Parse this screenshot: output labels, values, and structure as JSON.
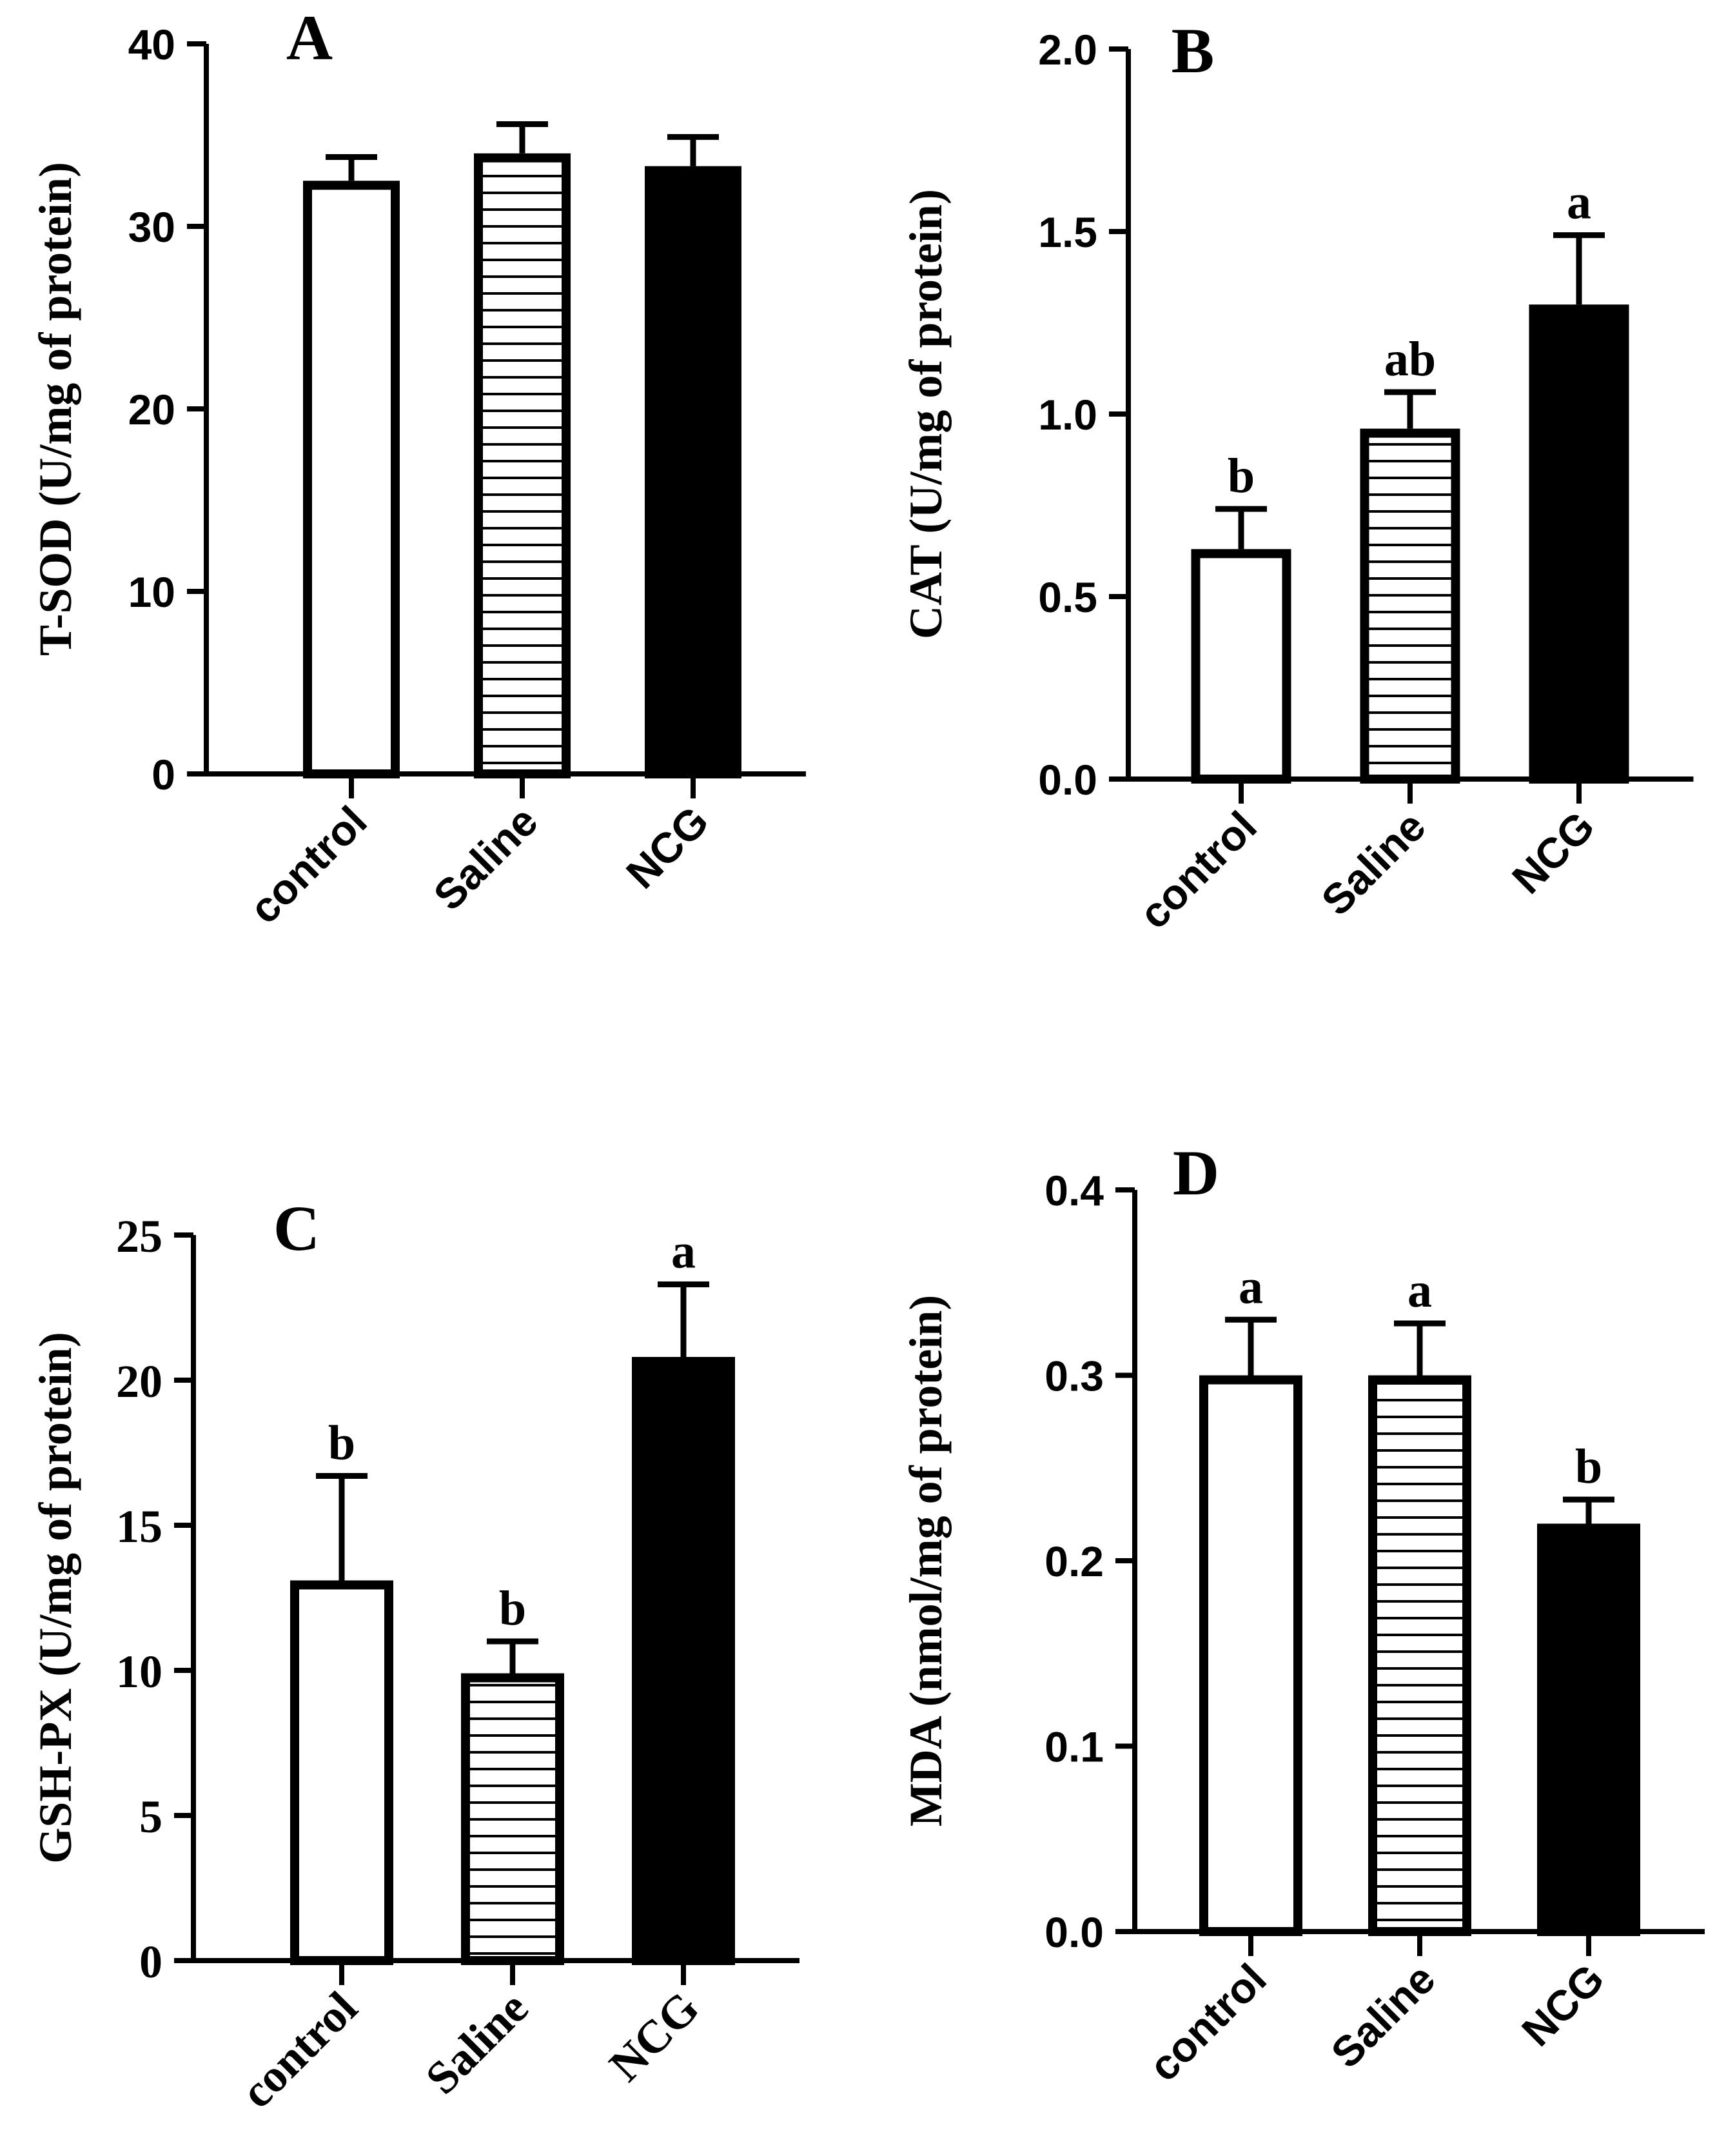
{
  "chart_data": [
    {
      "type": "bar",
      "panel_label": "A",
      "ylabel": "T-SOD (U/mg of protein)",
      "categories": [
        "control",
        "Saline",
        "NCG"
      ],
      "values": [
        32.5,
        34.0,
        33.3
      ],
      "errors": [
        1.3,
        1.6,
        1.6
      ],
      "significance": [
        "",
        "",
        ""
      ],
      "ylim": [
        0,
        40
      ],
      "yticks": [
        0,
        10,
        20,
        30,
        40
      ],
      "ytick_labels": [
        "0",
        "10",
        "20",
        "30",
        "40"
      ],
      "tick_font": "sans",
      "xlabel_font": "sans",
      "fills": [
        "white",
        "hatch",
        "black"
      ]
    },
    {
      "type": "bar",
      "panel_label": "B",
      "ylabel": "CAT (U/mg of protein)",
      "categories": [
        "control",
        "Saline",
        "NCG"
      ],
      "values": [
        0.63,
        0.96,
        1.3
      ],
      "errors": [
        0.11,
        0.1,
        0.19
      ],
      "significance": [
        "b",
        "ab",
        "a"
      ],
      "ylim": [
        0,
        2.0
      ],
      "yticks": [
        0,
        0.5,
        1.0,
        1.5,
        2.0
      ],
      "ytick_labels": [
        "0.0",
        "0.5",
        "1.0",
        "1.5",
        "2.0"
      ],
      "tick_font": "sans",
      "xlabel_font": "sans",
      "fills": [
        "white",
        "hatch",
        "black"
      ]
    },
    {
      "type": "bar",
      "panel_label": "C",
      "ylabel": "GSH-PX (U/mg of protein)",
      "categories": [
        "control",
        "Saline",
        "NCG"
      ],
      "values": [
        13.1,
        9.9,
        20.8
      ],
      "errors": [
        3.6,
        1.1,
        2.5
      ],
      "significance": [
        "b",
        "b",
        "a"
      ],
      "ylim": [
        0,
        25
      ],
      "yticks": [
        0,
        5,
        10,
        15,
        20,
        25
      ],
      "ytick_labels": [
        "0",
        "5",
        "10",
        "15",
        "20",
        "25"
      ],
      "tick_font": "serif",
      "xlabel_font": "serif",
      "fills": [
        "white",
        "hatch",
        "black"
      ]
    },
    {
      "type": "bar",
      "panel_label": "D",
      "ylabel": "MDA (nmol/mg of protein)",
      "categories": [
        "control",
        "Saline",
        "NCG"
      ],
      "values": [
        0.3,
        0.3,
        0.22
      ],
      "errors": [
        0.03,
        0.028,
        0.013
      ],
      "significance": [
        "a",
        "a",
        "b"
      ],
      "ylim": [
        0,
        0.4
      ],
      "yticks": [
        0,
        0.1,
        0.2,
        0.3,
        0.4
      ],
      "ytick_labels": [
        "0.0",
        "0.1",
        "0.2",
        "0.3",
        "0.4"
      ],
      "tick_font": "sans",
      "xlabel_font": "sans",
      "fills": [
        "white",
        "hatch",
        "black"
      ]
    }
  ],
  "colors": {
    "ink": "#000000",
    "background": "#ffffff"
  }
}
